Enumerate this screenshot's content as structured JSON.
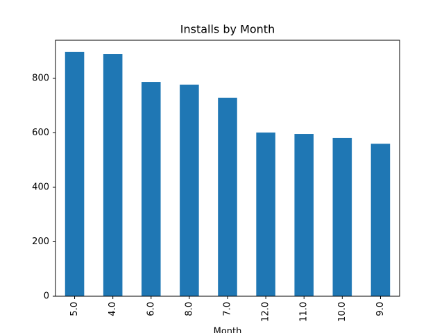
{
  "chart_data": {
    "type": "bar",
    "title": "Installs by Month",
    "x_label": "Month",
    "categories": [
      "5.0",
      "4.0",
      "6.0",
      "8.0",
      "7.0",
      "12.0",
      "11.0",
      "10.0",
      "9.0"
    ],
    "values": [
      897,
      889,
      787,
      777,
      729,
      601,
      596,
      581,
      560
    ],
    "color": "#1f77b4",
    "ylim": [
      0,
      940
    ],
    "yticks": [
      0,
      200,
      400,
      600,
      800
    ],
    "grid": false
  }
}
